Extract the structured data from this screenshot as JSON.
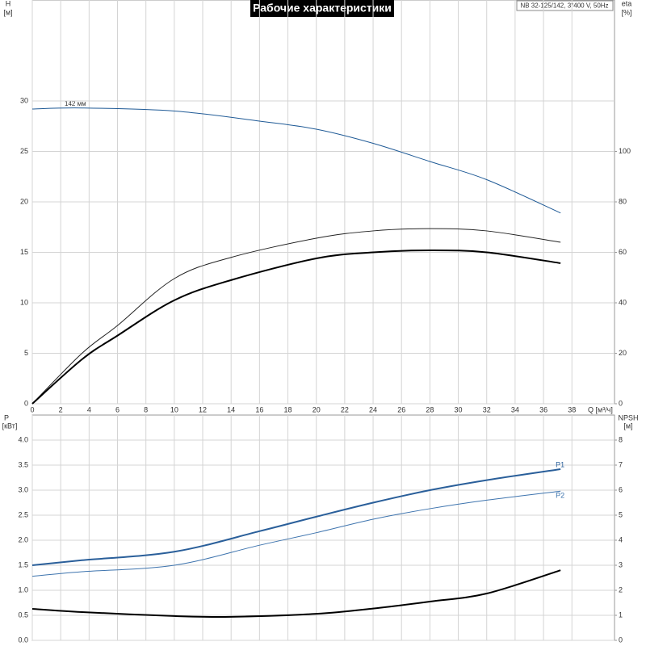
{
  "chart_data": [
    {
      "type": "line",
      "title": "Рабочие характеристики",
      "subtitle": "NB 32-125/142, 3*400 V, 50Hz",
      "annotations": [
        "142 мм"
      ],
      "xlabel": "Q [м³/ч]",
      "ylabel": [
        "H",
        "[м]"
      ],
      "y2label": [
        "eta",
        "[%]"
      ],
      "xlim": [
        0,
        41
      ],
      "xticks": [
        0,
        2,
        4,
        6,
        8,
        10,
        12,
        14,
        16,
        18,
        20,
        22,
        24,
        26,
        28,
        30,
        32,
        34,
        36,
        38
      ],
      "ylim": [
        0,
        40
      ],
      "yticks": [
        0,
        5,
        10,
        15,
        20,
        25,
        30
      ],
      "y2lim": [
        0,
        160
      ],
      "y2ticks": [
        0,
        20,
        40,
        60,
        80,
        100
      ],
      "grid": true,
      "series": [
        {
          "color": "#1f5a96",
          "x": [
            0,
            3.5,
            10,
            16,
            20,
            24,
            28,
            32,
            37.2
          ],
          "values": [
            29.2,
            29.3,
            29.0,
            28.0,
            27.2,
            25.8,
            24.0,
            22.2,
            18.9
          ]
        },
        {
          "color": "#222222",
          "axis": "y2",
          "x": [
            0,
            3.5,
            6,
            10,
            14,
            20,
            24,
            28,
            32,
            37.2
          ],
          "values": [
            0,
            20,
            31,
            49.6,
            58,
            65.6,
            68.5,
            69.4,
            68.5,
            64
          ]
        },
        {
          "color": "#000000",
          "axis": "y2",
          "line_width": 2,
          "x": [
            0,
            3.5,
            6,
            10,
            14,
            20,
            24,
            28,
            32,
            37.2
          ],
          "values": [
            0,
            17.6,
            27,
            41,
            49,
            57.6,
            60,
            60.8,
            60,
            55.7
          ]
        }
      ]
    },
    {
      "type": "line",
      "ylabel": [
        "P",
        "[кВт]"
      ],
      "y2label": [
        "NPSH",
        "[м]"
      ],
      "xlim": [
        0,
        41
      ],
      "xgrid": [
        0,
        2,
        4,
        6,
        8,
        10,
        12,
        14,
        16,
        18,
        20,
        22,
        24,
        26,
        28,
        30,
        32,
        34,
        36,
        38
      ],
      "ylim": [
        0,
        4.5
      ],
      "yticks": [
        {
          "value": 0,
          "label": "0.0"
        },
        0.5,
        {
          "value": 1,
          "label": "1.0"
        },
        1.5,
        {
          "value": 2,
          "label": "2.0"
        },
        2.5,
        {
          "value": 3,
          "label": "3.0"
        },
        3.5,
        {
          "value": 4,
          "label": "4.0"
        }
      ],
      "y2lim": [
        0,
        9
      ],
      "y2ticks": [
        0,
        1,
        2,
        3,
        4,
        5,
        6,
        7,
        8
      ],
      "grid": true,
      "series": [
        {
          "name": "P1",
          "color": "#2a5f9a",
          "line_width": 2,
          "x": [
            0,
            3.5,
            10,
            16,
            20,
            24,
            28,
            32,
            37.2
          ],
          "values": [
            1.5,
            1.6,
            1.77,
            2.18,
            2.47,
            2.75,
            3.0,
            3.2,
            3.42
          ]
        },
        {
          "name": "P2",
          "color": "#3e74ae",
          "x": [
            0,
            3.5,
            10,
            16,
            20,
            24,
            28,
            32,
            37.2
          ],
          "values": [
            1.28,
            1.37,
            1.5,
            1.9,
            2.15,
            2.42,
            2.63,
            2.8,
            2.98
          ]
        },
        {
          "color": "#000000",
          "axis": "y2",
          "line_width": 2,
          "x": [
            0,
            3.5,
            10,
            14,
            20,
            24,
            28,
            32,
            37.2
          ],
          "values": [
            1.26,
            1.13,
            0.97,
            0.94,
            1.06,
            1.27,
            1.55,
            1.87,
            2.8
          ]
        }
      ]
    }
  ]
}
